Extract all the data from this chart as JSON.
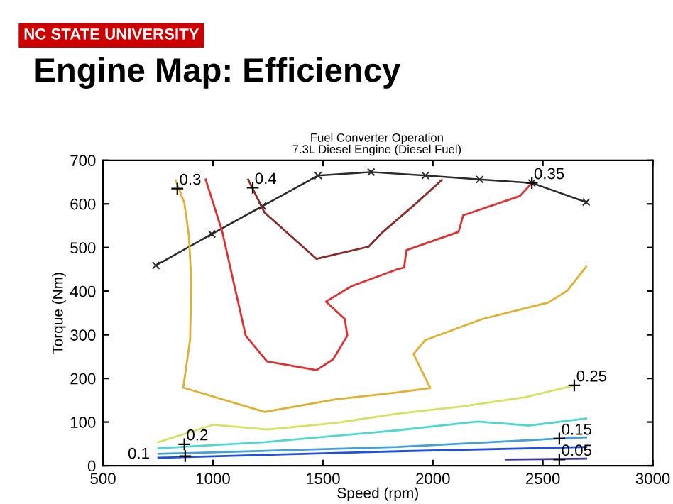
{
  "chart_data": {
    "type": "line",
    "title": "Engine Map: Efficiency",
    "subtitle": "Fuel Converter Operation",
    "xlabel": "Speed (rpm)",
    "ylabel": "Torque (Nm)",
    "xlim": [
      500,
      3000
    ],
    "ylim": [
      0,
      700
    ],
    "xticks": [
      500,
      1000,
      1500,
      2000,
      2500,
      3000
    ],
    "yticks": [
      0,
      100,
      200,
      300,
      400,
      500,
      600,
      700
    ],
    "grid": false,
    "line_style": "solid",
    "series": [
      {
        "color": "#2a2a2a",
        "marker": "cross",
        "x": [
          741,
          995,
          1225,
          1478,
          1719,
          1966,
          2213,
          2450,
          2697
        ],
        "values": [
          459,
          531,
          595,
          665,
          673,
          665,
          656,
          648,
          604
        ]
      },
      {
        "color": "#3a3aa0",
        "x": [
          2332,
          2697
        ],
        "values": [
          14,
          16
        ]
      },
      {
        "color": "#2050e0",
        "x": [
          752,
          1837,
          2697
        ],
        "values": [
          18,
          33,
          43
        ]
      },
      {
        "color": "#40a0e0",
        "x": [
          752,
          1837,
          2568,
          2697
        ],
        "values": [
          27,
          43,
          62,
          65
        ]
      },
      {
        "color": "#50d8d0",
        "x": [
          752,
          1235,
          1837,
          2203,
          2439,
          2697
        ],
        "values": [
          40,
          54,
          81,
          101,
          92,
          108
        ]
      },
      {
        "color": "#d8e060",
        "x": [
          752,
          1003,
          1245,
          1558,
          1837,
          2138,
          2418,
          2643
        ],
        "values": [
          54,
          94,
          83,
          98,
          119,
          136,
          157,
          184
        ]
      },
      {
        "color": "#e0b030",
        "x": [
          831,
          870,
          891,
          902,
          896,
          865,
          1235,
          1558,
          1837,
          1988,
          1912,
          1966,
          2224,
          2525,
          2611,
          2697
        ],
        "values": [
          654,
          602,
          526,
          418,
          288,
          179,
          123,
          152,
          168,
          178,
          256,
          288,
          336,
          374,
          401,
          456
        ]
      },
      {
        "color": "#e03030",
        "x": [
          967,
          1042,
          1095,
          1149,
          1246,
          1471,
          1547,
          1611,
          1600,
          1514,
          1633,
          1837,
          1869,
          1880,
          2117,
          2138,
          2396,
          2450
        ],
        "values": [
          656,
          537,
          418,
          298,
          239,
          219,
          244,
          298,
          336,
          376,
          412,
          450,
          454,
          494,
          536,
          574,
          618,
          648
        ]
      },
      {
        "color": "#8b2a2a",
        "x": [
          1160,
          1235,
          1471,
          1708,
          1773,
          1923,
          2041
        ],
        "values": [
          656,
          580,
          474,
          502,
          536,
          601,
          655
        ]
      }
    ],
    "annotations": [
      "NC STATE UNIVERSITY",
      "7.3L Diesel Engine (Diesel Fuel)",
      {
        "text": "0.3",
        "x": 838,
        "y": 635
      },
      {
        "text": "0.4",
        "x": 1181,
        "y": 637
      },
      {
        "text": "0.35",
        "x": 2450,
        "y": 648
      },
      {
        "text": "0.25",
        "x": 2643,
        "y": 184
      },
      {
        "text": "0.2",
        "x": 870,
        "y": 49
      },
      {
        "text": "0.15",
        "x": 2575,
        "y": 62
      },
      {
        "text": "0.1",
        "x": 874,
        "y": 22
      },
      {
        "text": "0.05",
        "x": 2575,
        "y": 14
      }
    ]
  }
}
